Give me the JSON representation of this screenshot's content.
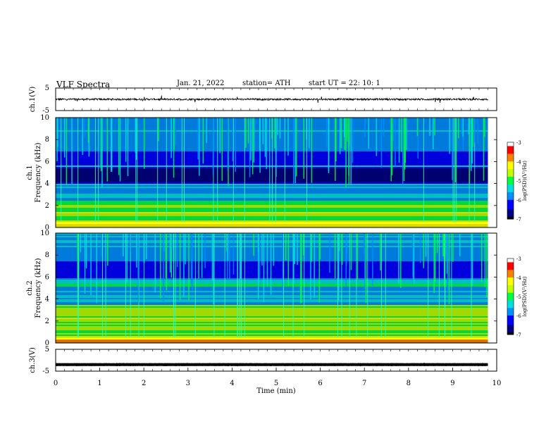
{
  "header": {
    "title": "VLF  Spectra",
    "date": "Jan. 21, 2022",
    "station": "station= ATH",
    "start_ut": "start  UT  =    22: 10: 1"
  },
  "chart_data": [
    {
      "type": "line",
      "panel": "ch1-waveform",
      "ylabel": "ch.1(V)",
      "ylim": [
        -5,
        5
      ],
      "yticks": [
        "5",
        "-5"
      ],
      "level": 0,
      "noise": 0.4
    },
    {
      "type": "heatmap",
      "panel": "ch1-spectrogram",
      "ylabel": "ch.1\nFrequency (kHz)",
      "ylim": [
        0,
        10
      ],
      "yticks": [
        "0",
        "2",
        "4",
        "6",
        "8",
        "10"
      ],
      "colorbar": {
        "label": "log(PSD)(V²/Hz)",
        "ticks": [
          "-3",
          "-4",
          "-5",
          "-6",
          "-7"
        ],
        "range": [
          -7,
          -3
        ]
      }
    },
    {
      "type": "heatmap",
      "panel": "ch2-spectrogram",
      "ylabel": "ch.2\nFrequency (kHz)",
      "ylim": [
        0,
        10
      ],
      "yticks": [
        "0",
        "2",
        "4",
        "6",
        "8",
        "10"
      ],
      "colorbar": {
        "label": "log(PSD)(V²/Hz)",
        "ticks": [
          "-3",
          "-4",
          "-5",
          "-6",
          "-7"
        ],
        "range": [
          -7,
          -3
        ]
      }
    },
    {
      "type": "line",
      "panel": "ch3-waveform",
      "ylabel": "ch.3(V)",
      "ylim": [
        -5,
        5
      ],
      "yticks": [
        "5",
        "-5"
      ],
      "level": -2,
      "noise": 0.05
    }
  ],
  "xaxis": {
    "label": "Time  (min)",
    "ticks": [
      "0",
      "1",
      "2",
      "3",
      "4",
      "5",
      "6",
      "7",
      "8",
      "9",
      "10"
    ],
    "xlim": [
      0,
      10
    ],
    "data_end": 9.8
  },
  "colors": {
    "colormap": [
      "#000000",
      "#000080",
      "#0000ff",
      "#0090ff",
      "#00e0e0",
      "#00ff40",
      "#c0ff00",
      "#ffff00",
      "#ff8000",
      "#ff0000",
      "#ffffff"
    ]
  }
}
